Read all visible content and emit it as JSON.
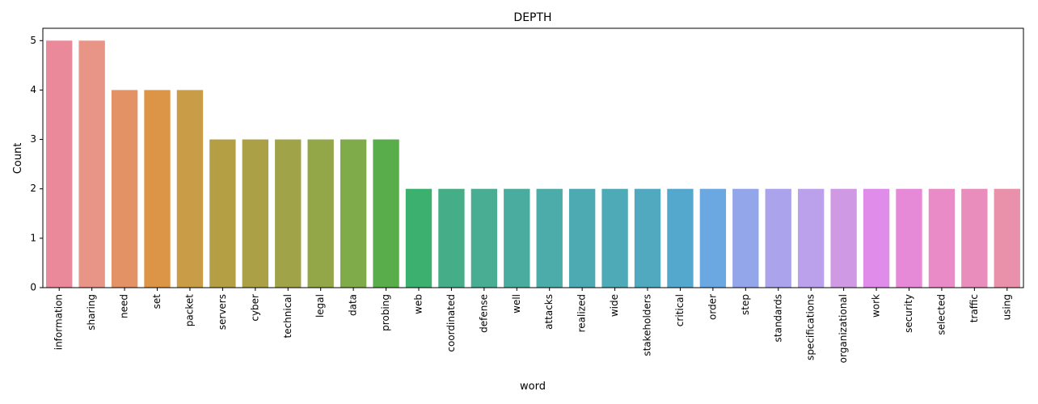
{
  "chart_data": {
    "type": "bar",
    "title": "DEPTH",
    "xlabel": "word",
    "ylabel": "Count",
    "ylim": [
      0,
      5.25
    ],
    "yticks": [
      0,
      1,
      2,
      3,
      4,
      5
    ],
    "grid": false,
    "categories": [
      "information",
      "sharing",
      "need",
      "set",
      "packet",
      "servers",
      "cyber",
      "technical",
      "legal",
      "data",
      "probing",
      "web",
      "coordinated",
      "defense",
      "well",
      "attacks",
      "realized",
      "wide",
      "stakeholders",
      "critical",
      "order",
      "step",
      "standards",
      "specifications",
      "organizational",
      "work",
      "security",
      "selected",
      "traffic",
      "using"
    ],
    "values": [
      5,
      5,
      4,
      4,
      4,
      3,
      3,
      3,
      3,
      3,
      3,
      2,
      2,
      2,
      2,
      2,
      2,
      2,
      2,
      2,
      2,
      2,
      2,
      2,
      2,
      2,
      2,
      2,
      2,
      2
    ],
    "colors": [
      "#e9899a",
      "#e89487",
      "#e39266",
      "#dc9546",
      "#c99c48",
      "#b49f45",
      "#aca046",
      "#a0a348",
      "#93a648",
      "#7fab4b",
      "#5aad4b",
      "#3cb06e",
      "#45ae88",
      "#49ad94",
      "#4aac9e",
      "#4cacaa",
      "#4daab2",
      "#4faab8",
      "#50a9bf",
      "#55a8cd",
      "#6ba8e2",
      "#94a6ea",
      "#aba4ec",
      "#bba1eb",
      "#cf99e4",
      "#df8cea",
      "#e68ad8",
      "#e88bc7",
      "#e98dbc",
      "#e990aa"
    ]
  }
}
